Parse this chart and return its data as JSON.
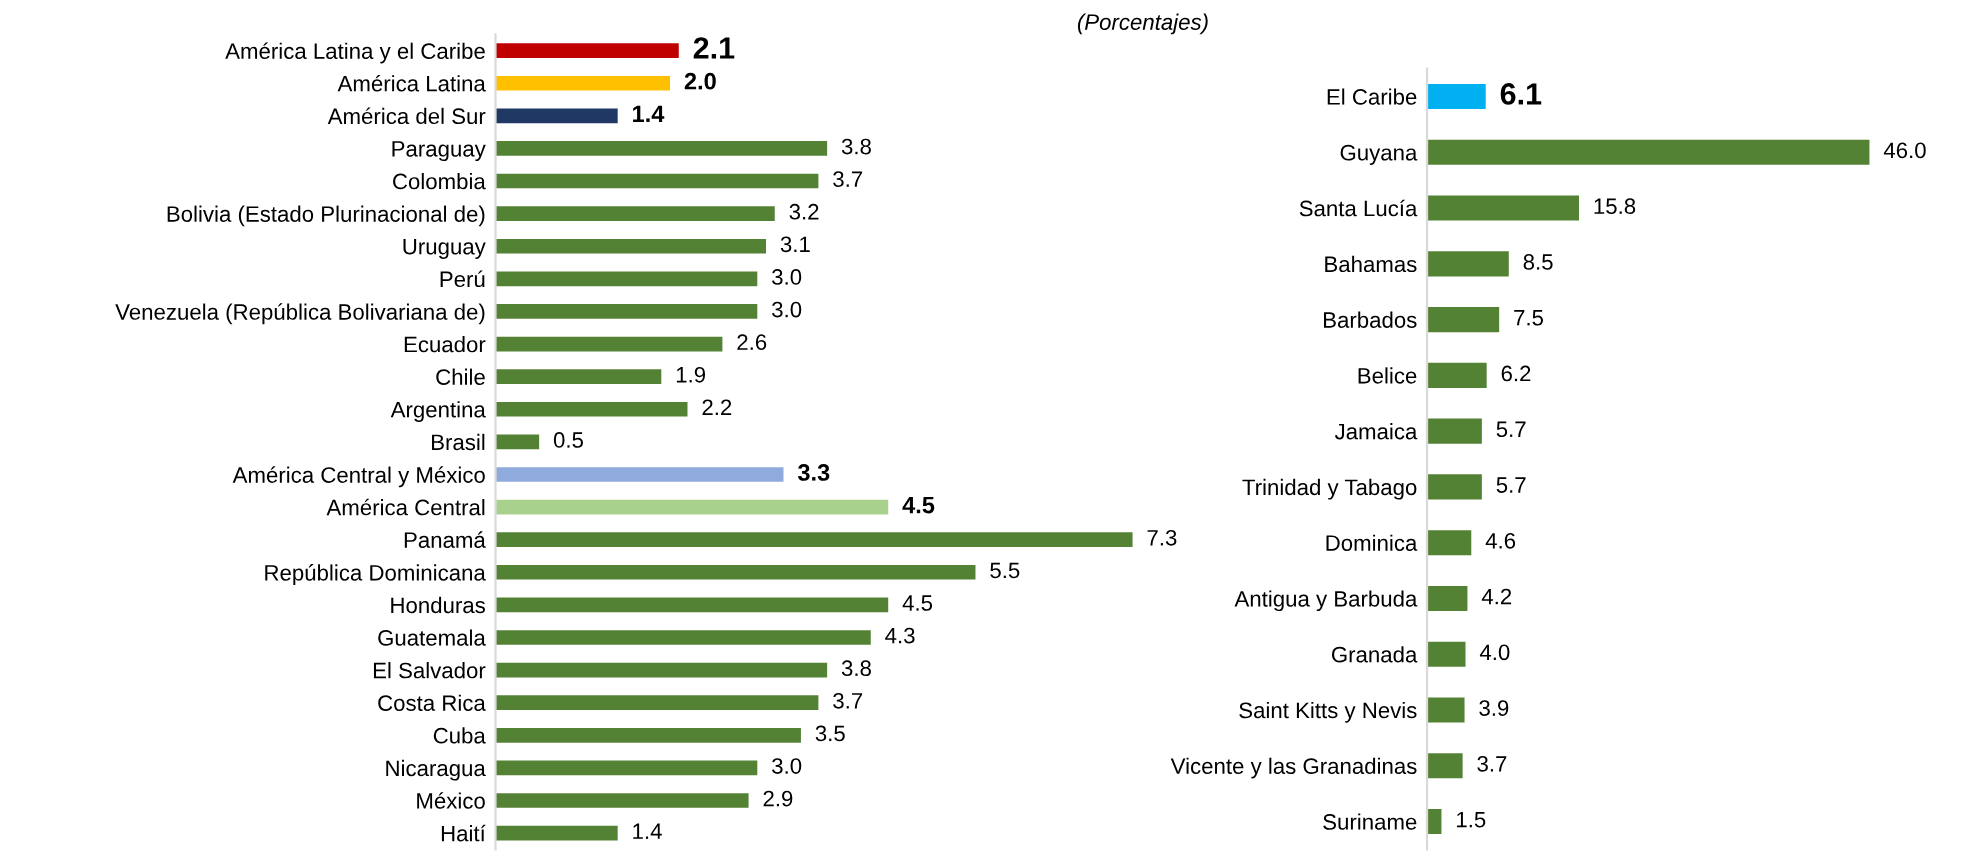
{
  "chart_data": [
    {
      "type": "bar",
      "orientation": "horizontal",
      "subtitle": "(Porcentajes)",
      "grid": false,
      "legend": false,
      "categories": [
        "América Latina y el Caribe",
        "América Latina",
        "América del Sur",
        "Paraguay",
        "Colombia",
        "Bolivia (Estado Plurinacional de)",
        "Uruguay",
        "Perú",
        "Venezuela (República Bolivariana de)",
        "Ecuador",
        "Chile",
        "Argentina",
        "Brasil",
        "América Central y México",
        "América Central",
        "Panamá",
        "República Dominicana",
        "Honduras",
        "Guatemala",
        "El Salvador",
        "Costa Rica",
        "Cuba",
        "Nicaragua",
        "México",
        "Haití"
      ],
      "values": [
        2.1,
        2.0,
        1.4,
        3.8,
        3.7,
        3.2,
        3.1,
        3.0,
        3.0,
        2.6,
        1.9,
        2.2,
        0.5,
        3.3,
        4.5,
        7.3,
        5.5,
        4.5,
        4.3,
        3.8,
        3.7,
        3.5,
        3.0,
        2.9,
        1.4
      ],
      "value_labels": [
        "2.1",
        "2.0",
        "1.4",
        "3.8",
        "3.7",
        "3.2",
        "3.1",
        "3.0",
        "3.0",
        "2.6",
        "1.9",
        "2.2",
        "0.5",
        "3.3",
        "4.5",
        "7.3",
        "5.5",
        "4.5",
        "4.3",
        "3.8",
        "3.7",
        "3.5",
        "3.0",
        "2.9",
        "1.4"
      ],
      "colors": [
        "#c00000",
        "#ffc000",
        "#1f3864",
        "#548235",
        "#548235",
        "#548235",
        "#548235",
        "#548235",
        "#548235",
        "#548235",
        "#548235",
        "#548235",
        "#548235",
        "#8faadc",
        "#a9d18e",
        "#548235",
        "#548235",
        "#548235",
        "#548235",
        "#548235",
        "#548235",
        "#548235",
        "#548235",
        "#548235",
        "#548235"
      ]
    },
    {
      "type": "bar",
      "orientation": "horizontal",
      "grid": false,
      "legend": false,
      "categories": [
        "El Caribe",
        "Guyana",
        "Santa Lucía",
        "Bahamas",
        "Barbados",
        "Belice",
        "Jamaica",
        "Trinidad y Tabago",
        "Dominica",
        "Antigua y Barbuda",
        "Granada",
        "Saint Kitts y Nevis",
        "Vicente y las Granadinas",
        "Suriname"
      ],
      "values": [
        6.1,
        46.0,
        15.8,
        8.5,
        7.5,
        6.2,
        5.7,
        5.7,
        4.6,
        4.2,
        4.0,
        3.9,
        3.7,
        1.5
      ],
      "value_labels": [
        "6.1",
        "46.0",
        "15.8",
        "8.5",
        "7.5",
        "6.2",
        "5.7",
        "5.7",
        "4.6",
        "4.2",
        "4.0",
        "3.9",
        "3.7",
        "1.5"
      ],
      "colors": [
        "#00b0f0",
        "#548235",
        "#548235",
        "#548235",
        "#548235",
        "#548235",
        "#548235",
        "#548235",
        "#548235",
        "#548235",
        "#548235",
        "#548235",
        "#548235",
        "#548235"
      ]
    }
  ]
}
